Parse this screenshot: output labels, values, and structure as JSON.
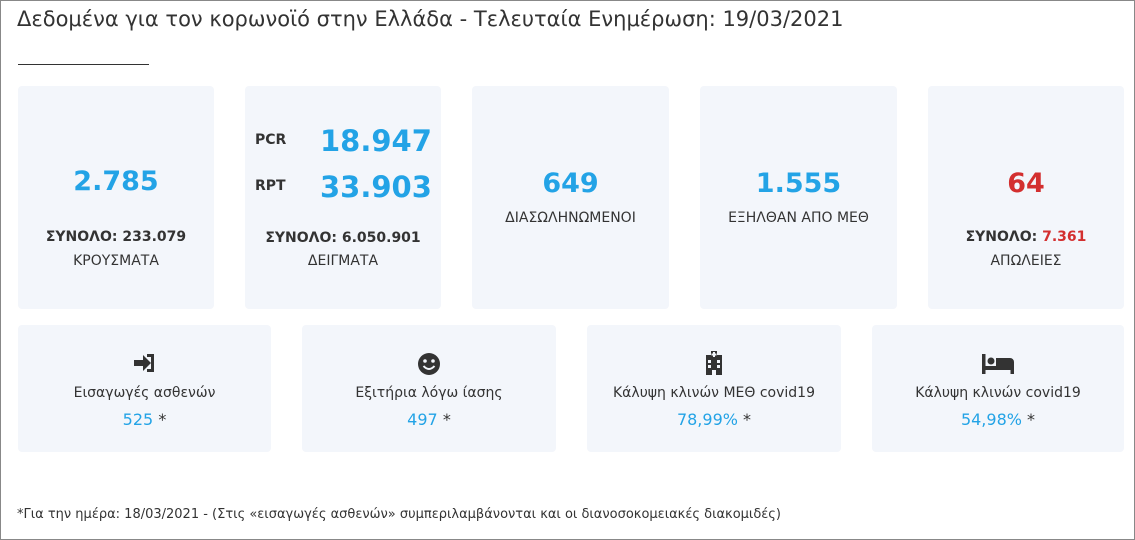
{
  "header": {
    "title": "Δεδομένα για τον κορωνοϊό στην Ελλάδα - Τελευταία Ενημέρωση: 19/03/2021"
  },
  "cards": [
    {
      "value": "2.785",
      "total_label": "ΣΥΝΟΛΟ:",
      "total": "233.079",
      "label": "ΚΡΟΥΣΜΑΤΑ"
    },
    {
      "rows": [
        {
          "label": "PCR",
          "value": "18.947"
        },
        {
          "label": "RPT",
          "value": "33.903"
        }
      ],
      "total_label": "ΣΥΝΟΛΟ:",
      "total": "6.050.901",
      "label": "ΔΕΙΓΜΑΤΑ"
    },
    {
      "value": "649",
      "label": "ΔΙΑΣΩΛΗΝΩΜΕΝΟΙ"
    },
    {
      "value": "1.555",
      "label": "ΕΞΗΛΘΑΝ ΑΠΟ ΜΕΘ"
    },
    {
      "value": "64",
      "total_label": "ΣΥΝΟΛΟ:",
      "total": "7.361",
      "label": "ΑΠΩΛΕΙΕΣ"
    }
  ],
  "stats": [
    {
      "label": "Εισαγωγές ασθενών",
      "value": "525",
      "mark": "*"
    },
    {
      "label": "Εξιτήρια λόγω ίασης",
      "value": "497",
      "mark": "*"
    },
    {
      "label": "Κάλυψη κλινών ΜΕΘ covid19",
      "value": "78,99%",
      "mark": "*"
    },
    {
      "label": "Κάλυψη κλινών covid19",
      "value": "54,98%",
      "mark": "*"
    }
  ],
  "footnote": "*Για την ημέρα: 18/03/2021 - (Στις «εισαγωγές ασθενών» συμπεριλαμβάνονται και οι διανοσοκομειακές διακομιδές)"
}
